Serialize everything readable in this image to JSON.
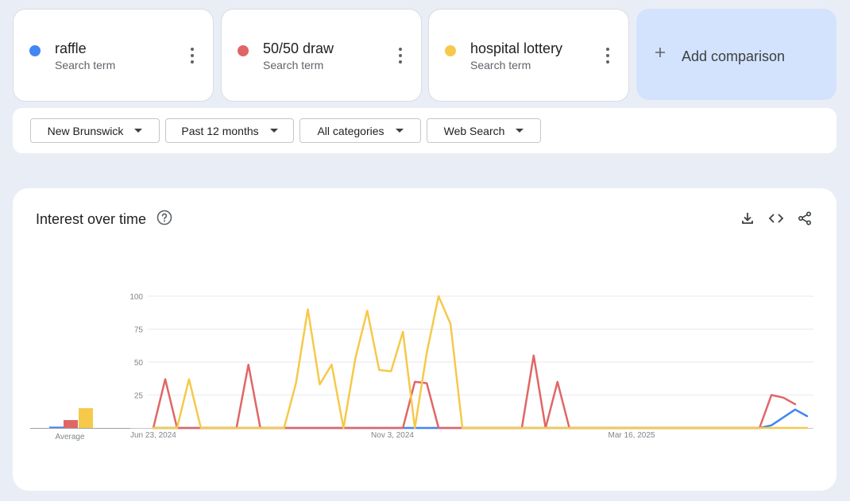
{
  "terms": [
    {
      "label": "raffle",
      "sublabel": "Search term",
      "color": "#4285f4"
    },
    {
      "label": "50/50 draw",
      "sublabel": "Search term",
      "color": "#e06666"
    },
    {
      "label": "hospital lottery",
      "sublabel": "Search term",
      "color": "#f6c94a"
    }
  ],
  "add_comparison": {
    "label": "Add comparison",
    "icon": "plus-icon"
  },
  "filters": {
    "region": "New Brunswick",
    "period": "Past 12 months",
    "category": "All categories",
    "search_type": "Web Search"
  },
  "panel": {
    "title": "Interest over time",
    "icons": [
      "help-icon",
      "download-icon",
      "embed-code-icon",
      "share-icon"
    ]
  },
  "chart_data": {
    "type": "line",
    "title": "Interest over time",
    "ylim": [
      0,
      100
    ],
    "yticks": [
      25,
      50,
      75,
      100
    ],
    "x_tick_labels": [
      "Jun 23, 2024",
      "Nov 3, 2024",
      "Mar 16, 2025"
    ],
    "average_label": "Average",
    "averages": [
      {
        "name": "raffle",
        "value": 1
      },
      {
        "name": "50/50 draw",
        "value": 6
      },
      {
        "name": "hospital lottery",
        "value": 15
      }
    ],
    "series": [
      {
        "name": "raffle",
        "color": "#4285f4",
        "points": [
          [
            0,
            0
          ],
          [
            22,
            0
          ],
          [
            23,
            0
          ],
          [
            24,
            0
          ],
          [
            25,
            0
          ],
          [
            51,
            0
          ],
          [
            52,
            2
          ],
          [
            53,
            8
          ],
          [
            54,
            14
          ],
          [
            55,
            9
          ]
        ]
      },
      {
        "name": "50/50 draw",
        "color": "#e06666",
        "points": [
          [
            0,
            0
          ],
          [
            1,
            37
          ],
          [
            2,
            0
          ],
          [
            7,
            0
          ],
          [
            8,
            48
          ],
          [
            9,
            0
          ],
          [
            21,
            0
          ],
          [
            22,
            35
          ],
          [
            23,
            34
          ],
          [
            24,
            0
          ],
          [
            31,
            0
          ],
          [
            32,
            55
          ],
          [
            33,
            0
          ],
          [
            34,
            35
          ],
          [
            35,
            0
          ],
          [
            51,
            0
          ],
          [
            52,
            25
          ],
          [
            53,
            23
          ],
          [
            54,
            18
          ]
        ]
      },
      {
        "name": "hospital lottery",
        "color": "#f6c94a",
        "points": [
          [
            0,
            0
          ],
          [
            2,
            0
          ],
          [
            3,
            37
          ],
          [
            4,
            0
          ],
          [
            11,
            0
          ],
          [
            12,
            34
          ],
          [
            13,
            90
          ],
          [
            14,
            33
          ],
          [
            15,
            48
          ],
          [
            16,
            0
          ],
          [
            17,
            53
          ],
          [
            18,
            89
          ],
          [
            19,
            44
          ],
          [
            20,
            43
          ],
          [
            21,
            73
          ],
          [
            22,
            0
          ],
          [
            23,
            57
          ],
          [
            24,
            100
          ],
          [
            25,
            79
          ],
          [
            26,
            0
          ],
          [
            55,
            0
          ]
        ]
      }
    ]
  }
}
